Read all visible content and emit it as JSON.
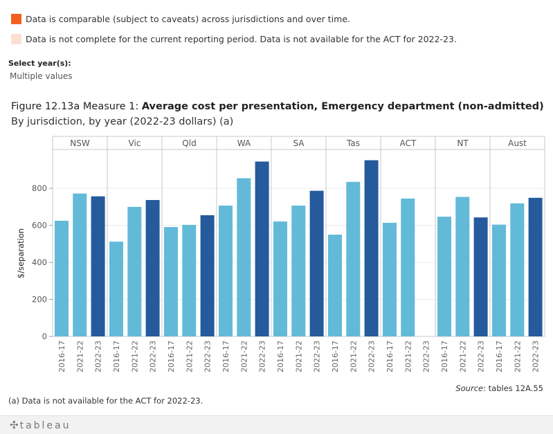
{
  "legend": [
    {
      "label": "Data is comparable (subject to caveats) across jurisdictions and over time.",
      "color": "#f26122"
    },
    {
      "label": "Data is not complete for the current reporting period. Data is not available for the ACT for 2022-23.",
      "color": "#fde0d4"
    }
  ],
  "filter": {
    "label": "Select year(s):",
    "value": "Multiple values"
  },
  "figure": {
    "title_prefix": "Figure 12.13a Measure 1: ",
    "title_main": "Average cost per presentation, Emergency department (non-admitted)",
    "subtitle": "By jurisdiction, by year (2022-23 dollars) (a)"
  },
  "source": {
    "label": "Source",
    "text": ": tables 12A.55"
  },
  "footnote": "(a) Data is not available for the ACT for 2022-23.",
  "footer": {
    "logo": "tableau"
  },
  "colors": {
    "light": "#62bad8",
    "dark": "#255a9c",
    "grid": "#ececec",
    "divider": "#c8c8c8"
  },
  "chart_data": {
    "type": "bar",
    "ylabel": "$/separation",
    "ylim": [
      0,
      1000
    ],
    "yticks": [
      0,
      200,
      400,
      600,
      800
    ],
    "years": [
      "2016-17",
      "2021-22",
      "2022-23"
    ],
    "jurisdictions": [
      "NSW",
      "Vic",
      "Qld",
      "WA",
      "SA",
      "Tas",
      "ACT",
      "NT",
      "Aust"
    ],
    "values": [
      [
        625,
        772,
        757
      ],
      [
        512,
        700,
        737
      ],
      [
        591,
        603,
        655
      ],
      [
        707,
        855,
        945
      ],
      [
        621,
        707,
        787
      ],
      [
        550,
        835,
        952
      ],
      [
        614,
        745,
        null
      ],
      [
        647,
        754,
        643
      ],
      [
        604,
        719,
        749
      ]
    ]
  }
}
